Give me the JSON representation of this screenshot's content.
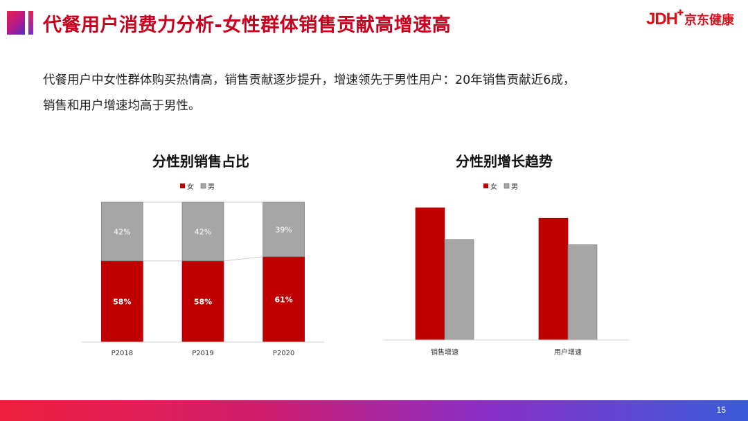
{
  "header": {
    "title": "代餐用户消费力分析-女性群体销售贡献高增速高",
    "logo_mark": "JDH",
    "logo_text": "京东健康"
  },
  "summary": {
    "line1": "代餐用户中女性群体购买热情高，销售贡献逐步提升，增速领先于男性用户：20年销售贡献近6成，",
    "line2": "销售和用户增速均高于男性。"
  },
  "colors": {
    "female": "#c00000",
    "male": "#a6a6a6",
    "title_red": "#c8001e"
  },
  "chart_data": [
    {
      "type": "bar",
      "stacked": true,
      "title": "分性别销售占比",
      "categories": [
        "P2018",
        "P2019",
        "P2020"
      ],
      "series": [
        {
          "name": "女",
          "values": [
            58,
            58,
            61
          ],
          "labels": [
            "58%",
            "58%",
            "61%"
          ],
          "color": "#c00000"
        },
        {
          "name": "男",
          "values": [
            42,
            42,
            39
          ],
          "labels": [
            "42%",
            "42%",
            "39%"
          ],
          "color": "#a6a6a6"
        }
      ],
      "ylim": [
        0,
        100
      ],
      "legend": "top-center",
      "grid": false,
      "series_lines": true
    },
    {
      "type": "bar",
      "title": "分性别增长趋势",
      "categories": [
        "销售增速",
        "用户增速"
      ],
      "series": [
        {
          "name": "女",
          "values": [
            1.0,
            0.92
          ],
          "color": "#c00000"
        },
        {
          "name": "男",
          "values": [
            0.76,
            0.72
          ],
          "color": "#a6a6a6"
        }
      ],
      "ylim": [
        0,
        1.0
      ],
      "legend": "top-center",
      "grid": false
    }
  ],
  "footer": {
    "page": "15"
  }
}
